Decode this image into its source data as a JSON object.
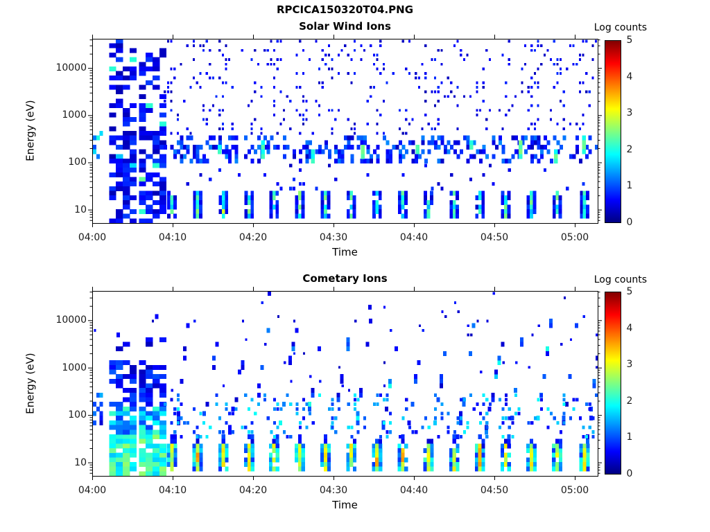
{
  "figure": {
    "title": "RPCICA150320T04.PNG",
    "background": "#ffffff",
    "text_color": "#000000"
  },
  "colorbar": {
    "label": "Log counts",
    "ticks": [
      "0",
      "1",
      "2",
      "3",
      "4",
      "5"
    ],
    "min": 0,
    "max": 5,
    "colormap": "jet",
    "stops": [
      "#000080",
      "#0000ff",
      "#00ffff",
      "#80ff80",
      "#ffff00",
      "#ff8000",
      "#ff0000",
      "#800000"
    ],
    "positions": [
      0,
      0.125,
      0.375,
      0.5,
      0.625,
      0.75,
      0.875,
      1
    ]
  },
  "axes": {
    "xlabel": "Time",
    "ylabel": "Energy (eV)",
    "x_ticks": [
      "04:00",
      "04:10",
      "04:20",
      "04:30",
      "04:40",
      "04:50",
      "05:00"
    ],
    "x_tick_minutes": [
      0,
      10,
      20,
      30,
      40,
      50,
      60
    ],
    "x_range_minutes": [
      0,
      62.8
    ],
    "y_ticks": [
      "10",
      "100",
      "1000",
      "10000"
    ],
    "y_tick_values": [
      10,
      100,
      1000,
      10000
    ],
    "y_range_ev": [
      5.2,
      41500
    ],
    "y_scale": "log",
    "grid": false
  },
  "chart_data": [
    {
      "type": "heatmap",
      "title": "Solar Wind Ions",
      "x_unit": "minutes after 04:00",
      "value_unit": "log10 counts",
      "features": [
        {
          "kind": "block",
          "t": [
            0.1,
            1.3
          ],
          "e": [
            120,
            420
          ],
          "density": 0.55,
          "v": [
            0.4,
            2.1
          ]
        },
        {
          "kind": "stripes",
          "t_ranges": [
            [
              2.1,
              4.9
            ],
            [
              5.8,
              8.8
            ]
          ],
          "col_min": 0.85,
          "e": [
            5.5,
            38000
          ],
          "low_e_max": 420,
          "density_low": 0.72,
          "density_high": 0.38,
          "v": [
            0.25,
            0.95
          ],
          "hot_frac": 0.06,
          "hot_v": [
            1.4,
            2.4
          ]
        },
        {
          "kind": "bursts",
          "times": [
            9.9,
            13.1,
            16.3,
            19.5,
            22.6,
            25.8,
            29.0,
            32.2,
            35.4,
            38.6,
            41.8,
            45.0,
            48.2,
            51.4,
            54.6,
            57.8,
            61.2
          ],
          "e": [
            6.5,
            27
          ],
          "width_min": 1.15,
          "density": 0.82,
          "edge_v": [
            0.35,
            0.95
          ],
          "core_v": [
            1.5,
            2.6
          ],
          "hot_times": [
            16.3
          ],
          "hot_v": 3.0
        },
        {
          "kind": "band",
          "t": [
            8.9,
            62.8
          ],
          "e": [
            105,
            380
          ],
          "density": 0.3,
          "v": [
            0.3,
            1.3
          ],
          "streak_times": [
            15.6,
            21.0,
            27.2,
            33.4,
            40.2,
            46.9,
            53.0,
            57.4,
            60.9
          ],
          "streak_v": [
            1.8,
            2.5
          ]
        },
        {
          "kind": "scatter",
          "t": [
            8.9,
            62.8
          ],
          "e": [
            400,
            40000
          ],
          "density": 0.13,
          "v": [
            0.25,
            0.85
          ],
          "cluster_period": 3.2,
          "cluster_phase": 9.9,
          "cluster_gain": 0.55,
          "size": 0.6
        },
        {
          "kind": "scatter",
          "t": [
            8.9,
            62.8
          ],
          "e": [
            28,
            100
          ],
          "density": 0.05,
          "v": [
            0.3,
            0.9
          ],
          "size": 0.8
        }
      ]
    },
    {
      "type": "heatmap",
      "title": "Cometary Ions",
      "x_unit": "minutes after 04:00",
      "value_unit": "log10 counts",
      "features": [
        {
          "kind": "block",
          "t": [
            0.1,
            1.3
          ],
          "e": [
            60,
            320
          ],
          "density": 0.5,
          "v": [
            0.4,
            1.7
          ]
        },
        {
          "kind": "stripes_banded",
          "t_ranges": [
            [
              2.1,
              4.9
            ],
            [
              5.8,
              8.8
            ]
          ],
          "col_min": 0.85,
          "bands": [
            {
              "e": [
                5.5,
                15
              ],
              "density": 0.9,
              "v": [
                1.6,
                2.6
              ]
            },
            {
              "e": [
                15,
                42
              ],
              "density": 0.88,
              "v": [
                1.7,
                2.7
              ]
            },
            {
              "e": [
                42,
                150
              ],
              "density": 0.78,
              "v": [
                0.9,
                2.2
              ]
            },
            {
              "e": [
                150,
                1300
              ],
              "density": 0.58,
              "v": [
                0.3,
                1.1
              ]
            },
            {
              "e": [
                1300,
                5200
              ],
              "density": 0.18,
              "v": [
                0.3,
                0.9
              ]
            }
          ]
        },
        {
          "kind": "bursts",
          "times": [
            9.9,
            13.1,
            16.3,
            19.5,
            22.6,
            25.8,
            29.0,
            32.2,
            35.4,
            38.6,
            41.8,
            45.0,
            48.2,
            51.4,
            54.6,
            57.8,
            61.2
          ],
          "e": [
            6.5,
            25
          ],
          "width_min": 1.25,
          "density": 0.9,
          "edge_v": [
            0.8,
            2.2
          ],
          "core_v": [
            2.5,
            3.3
          ],
          "hot_times": [
            13.1,
            35.4,
            38.6,
            48.2
          ],
          "hot_v": 3.6,
          "cap_e": [
            25,
            38
          ],
          "cap_v": [
            0.4,
            1.0
          ],
          "cap_density": 0.5
        },
        {
          "kind": "streaks",
          "times": [
            9.9,
            13.1,
            16.3,
            19.5,
            22.6,
            25.8,
            29.0,
            32.2,
            35.4,
            38.6,
            41.8,
            45.0,
            48.2,
            51.4,
            54.6,
            57.8,
            61.2
          ],
          "e_start": 28,
          "e_end": [
            1200,
            9000
          ],
          "rise_min": [
            1.6,
            2.6
          ],
          "density": 0.6,
          "v": [
            0.35,
            1.3
          ],
          "cyan_frac": 0.14,
          "cyan_v": [
            1.6,
            2.2
          ]
        },
        {
          "kind": "scatter",
          "t": [
            8.9,
            62.8
          ],
          "e": [
            30,
            300
          ],
          "density": 0.16,
          "v": [
            0.5,
            1.9
          ],
          "cluster_period": 3.2,
          "cluster_phase": 10.3,
          "cluster_gain": 0.6,
          "size": 0.8
        },
        {
          "kind": "scatter",
          "t": [
            0.2,
            62.8
          ],
          "e": [
            300,
            42000
          ],
          "density": 0.015,
          "v": [
            0.3,
            0.8
          ],
          "size": 0.6
        },
        {
          "kind": "points",
          "pts": [
            [
              7.8,
              12000,
              0.6
            ],
            [
              21.8,
              39000,
              0.5
            ],
            [
              34.3,
              20000,
              0.5
            ],
            [
              3.0,
              4500,
              0.6
            ]
          ]
        }
      ]
    }
  ]
}
